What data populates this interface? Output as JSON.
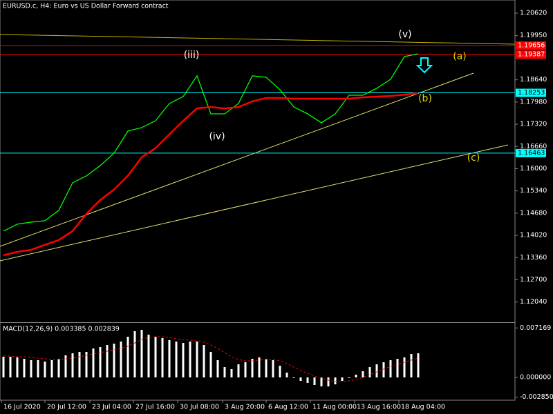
{
  "chart_data": [
    {
      "type": "line",
      "title": "EURUSD.c, H4:  Euro vs US Dollar Forward contract",
      "x": [
        0,
        2,
        4,
        6,
        8,
        10,
        12,
        14,
        16,
        18,
        20,
        22,
        24,
        26,
        28,
        30,
        32,
        34,
        36,
        38,
        40,
        42,
        44,
        46,
        48,
        50,
        52,
        54,
        56,
        58,
        60
      ],
      "series": [
        {
          "color": "#00ff00",
          "values": [
            1.14147,
            1.14352,
            1.14413,
            1.14454,
            1.14762,
            1.15581,
            1.15786,
            1.16093,
            1.16462,
            1.17117,
            1.1722,
            1.17424,
            1.17937,
            1.18141,
            1.18756,
            1.17629,
            1.17629,
            1.17937,
            1.18756,
            1.18715,
            1.18346,
            1.17834,
            1.17629,
            1.17363,
            1.17629,
            1.18182,
            1.18182,
            1.18387,
            1.18654,
            1.1933,
            1.19411
          ]
        },
        {
          "color": "#ff0000",
          "values": [
            1.1343,
            1.1353,
            1.1359,
            1.1374,
            1.1388,
            1.1415,
            1.1466,
            1.1507,
            1.1538,
            1.1579,
            1.1634,
            1.1661,
            1.1702,
            1.1742,
            1.1779,
            1.1783,
            1.1779,
            1.1783,
            1.18,
            1.181,
            1.181,
            1.1808,
            1.1808,
            1.1808,
            1.1808,
            1.1808,
            1.1812,
            1.1814,
            1.1816,
            1.182,
            1.1824
          ]
        }
      ],
      "xlim": [
        -0.5,
        74
      ],
      "ylim": [
        1.1144,
        1.2101
      ],
      "yticks": [
        {
          "value": 1.2062,
          "label": "1.20620"
        },
        {
          "value": 1.1995,
          "label": "1.19950"
        },
        {
          "value": 1.1864,
          "label": "1.18640"
        },
        {
          "value": 1.1798,
          "label": "1.17980"
        },
        {
          "value": 1.1732,
          "label": "1.17320"
        },
        {
          "value": 1.1666,
          "label": "1.16660"
        },
        {
          "value": 1.16,
          "label": "1.16000"
        },
        {
          "value": 1.1534,
          "label": "1.15340"
        },
        {
          "value": 1.1468,
          "label": "1.14680"
        },
        {
          "value": 1.1402,
          "label": "1.14020"
        },
        {
          "value": 1.1336,
          "label": "1.13360"
        },
        {
          "value": 1.127,
          "label": "1.12700"
        },
        {
          "value": 1.1204,
          "label": "1.12040"
        }
      ],
      "levels": [
        {
          "value": 1.19656,
          "color": "#ff0000"
        },
        {
          "value": 1.19387,
          "color": "#ff0000"
        },
        {
          "value": 1.18253,
          "color": "#00ffff"
        },
        {
          "value": 1.16463,
          "color": "#00ffff"
        }
      ],
      "annotations": [
        {
          "text": "(iii)",
          "color": "#ffffff"
        },
        {
          "text": "(iv)",
          "color": "#ffffff"
        },
        {
          "text": "(v)",
          "color": "#ffffff"
        },
        {
          "text": "(a)",
          "color": "#e6d200"
        },
        {
          "text": "(b)",
          "color": "#e6d200"
        },
        {
          "text": "(c)",
          "color": "#e6d200"
        }
      ]
    },
    {
      "type": "bar",
      "title": "MACD(12,26,9) 0.003385 0.002839",
      "x": [
        0,
        1,
        2,
        3,
        4,
        5,
        6,
        7,
        8,
        9,
        10,
        11,
        12,
        13,
        14,
        15,
        16,
        17,
        18,
        19,
        20,
        21,
        22,
        23,
        24,
        25,
        26,
        27,
        28,
        29,
        30,
        31,
        32,
        33,
        34,
        35,
        36,
        37,
        38,
        39,
        40,
        41,
        42,
        43,
        44,
        45,
        46,
        47,
        48,
        49,
        50,
        51,
        52,
        53,
        54,
        55,
        56,
        57,
        58,
        59,
        60
      ],
      "values": [
        0.003,
        0.003,
        0.0029,
        0.0027,
        0.0025,
        0.0025,
        0.0023,
        0.0025,
        0.0027,
        0.0032,
        0.0035,
        0.0037,
        0.0037,
        0.0042,
        0.0044,
        0.0047,
        0.0049,
        0.0052,
        0.0059,
        0.0067,
        0.0069,
        0.0062,
        0.0059,
        0.0057,
        0.0054,
        0.0052,
        0.005,
        0.0052,
        0.0052,
        0.0047,
        0.0037,
        0.0025,
        0.0015,
        0.0012,
        0.0019,
        0.0022,
        0.0027,
        0.0029,
        0.0027,
        0.0025,
        0.0017,
        0.0007,
        -0.0001,
        -0.0005,
        -0.0008,
        -0.0011,
        -0.0013,
        -0.0013,
        -0.001,
        -0.0005,
        -0.0001,
        0.0004,
        0.0009,
        0.0015,
        0.0019,
        0.0022,
        0.0025,
        0.0027,
        0.0029,
        0.0034,
        0.0035
      ],
      "signal_values": [
        0.0031,
        0.0031,
        0.003,
        0.003,
        0.0029,
        0.0028,
        0.0027,
        0.0026,
        0.0026,
        0.0027,
        0.0028,
        0.003,
        0.0032,
        0.0034,
        0.0036,
        0.0038,
        0.004,
        0.0042,
        0.0045,
        0.005,
        0.0055,
        0.0058,
        0.0059,
        0.0059,
        0.0058,
        0.0056,
        0.0055,
        0.0054,
        0.0053,
        0.0051,
        0.0047,
        0.0042,
        0.0036,
        0.003,
        0.0026,
        0.0024,
        0.0024,
        0.0025,
        0.0026,
        0.0026,
        0.0024,
        0.002,
        0.0015,
        0.001,
        0.0006,
        0.0002,
        -0.0001,
        -0.0004,
        -0.0006,
        -0.0006,
        -0.0005,
        -0.0003,
        0,
        0.0004,
        0.0008,
        0.0012,
        0.0016,
        0.0019,
        0.0022,
        0.0025,
        0.0028
      ],
      "color": "#ffffff",
      "signal_color": "#ff0000",
      "xlim": [
        -0.5,
        74
      ],
      "ylim": [
        -0.0033,
        0.0079
      ],
      "yticks": [
        0.007169,
        {
          "value": 0,
          "label": "0.000000"
        },
        {
          "value": -0.00285,
          "label": "-0.002850"
        }
      ],
      "xticks": [
        {
          "value": -0.3,
          "label": "16 Jul 2020"
        },
        {
          "value": 6,
          "label": "20 Jul 12:00"
        },
        {
          "value": 12.5,
          "label": "23 Jul 04:00"
        },
        {
          "value": 18.8,
          "label": "27 Jul 16:00"
        },
        {
          "value": 25.2,
          "label": "30 Jul 08:00"
        },
        {
          "value": 31.7,
          "label": "3 Aug 20:00"
        },
        {
          "value": 38,
          "label": "6 Aug 12:00"
        },
        {
          "value": 44.4,
          "label": "11 Aug 00:00"
        },
        {
          "value": 50.8,
          "label": "13 Aug 16:00"
        },
        {
          "value": 57.2,
          "label": "18 Aug 04:00"
        }
      ]
    }
  ]
}
